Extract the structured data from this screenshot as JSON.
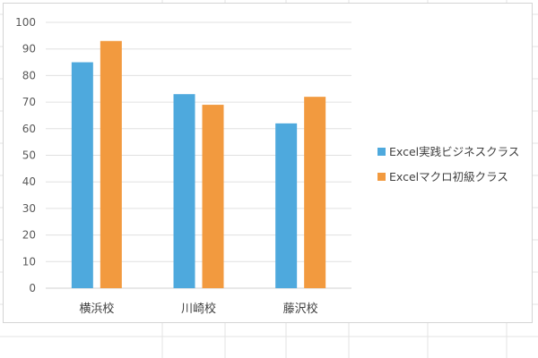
{
  "chart_data": {
    "type": "bar",
    "categories": [
      "横浜校",
      "川崎校",
      "藤沢校"
    ],
    "series": [
      {
        "name": "Excel実践ビジネスクラス",
        "values": [
          85,
          73,
          62
        ],
        "color": "#4ea9dd"
      },
      {
        "name": "Excelマクロ初級クラス",
        "values": [
          93,
          69,
          72
        ],
        "color": "#f29a3f"
      }
    ],
    "ylim": [
      0,
      100
    ],
    "yticks": [
      0,
      10,
      20,
      30,
      40,
      50,
      60,
      70,
      80,
      90,
      100
    ],
    "grid": true,
    "legend": "right"
  }
}
